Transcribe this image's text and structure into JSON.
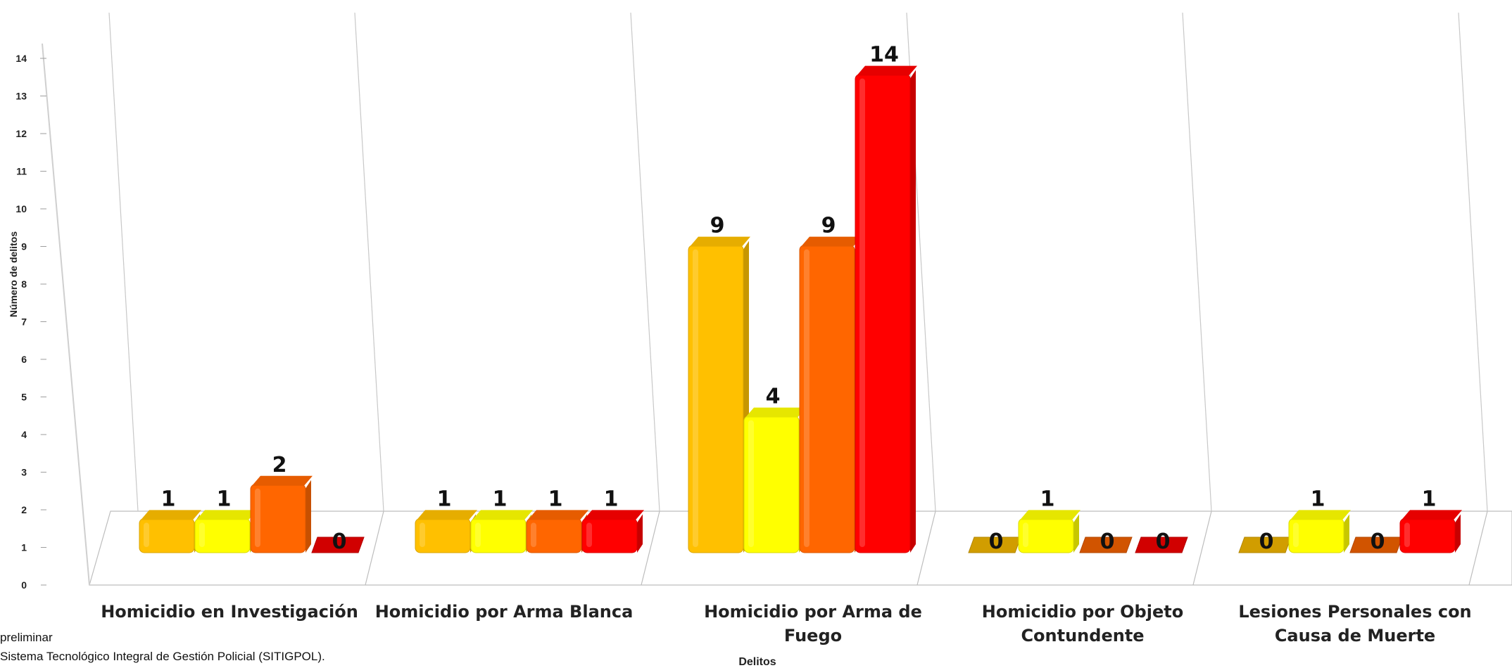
{
  "chart_data": {
    "type": "bar",
    "xlabel": "Delitos",
    "ylabel": "Número de delitos",
    "ylim": [
      0,
      14
    ],
    "yticks": [
      "0",
      "1",
      "2",
      "3",
      "4",
      "5",
      "6",
      "7",
      "8",
      "9",
      "10",
      "11",
      "12",
      "13",
      "14"
    ],
    "categories": [
      [
        "Homicidio en Investigación"
      ],
      [
        "Homicidio por Arma Blanca"
      ],
      [
        "Homicidio por Arma de",
        "Fuego"
      ],
      [
        "Homicidio por Objeto",
        "Contundente"
      ],
      [
        "Lesiones Personales con",
        "Causa de Muerte"
      ]
    ],
    "series": [
      {
        "color": "#ffc000",
        "values": [
          1,
          1,
          9,
          0,
          0
        ]
      },
      {
        "color": "#ffff00",
        "values": [
          1,
          1,
          4,
          1,
          1
        ]
      },
      {
        "color": "#ff6600",
        "values": [
          2,
          1,
          9,
          0,
          0
        ]
      },
      {
        "color": "#ff0000",
        "values": [
          0,
          1,
          14,
          0,
          1
        ]
      }
    ],
    "legend": "none",
    "grid": false
  },
  "footnotes": {
    "line1": "preliminar",
    "line2": "Sistema Tecnológico Integral de Gestión Policial (SITIGPOL)."
  }
}
